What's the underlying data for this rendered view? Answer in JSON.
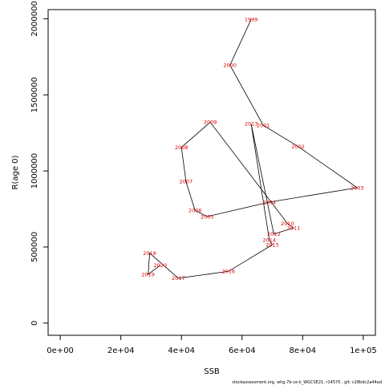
{
  "chart_data": {
    "type": "line",
    "xlabel": "SSB",
    "ylabel": "R(age 0)",
    "xlim": [
      -4000,
      104000
    ],
    "ylim": [
      -80000,
      2060000
    ],
    "x_ticks": [
      0,
      20000,
      40000,
      60000,
      80000,
      100000
    ],
    "x_tick_labels": [
      "0e+00",
      "2e+04",
      "4e+04",
      "6e+04",
      "8e+04",
      "1e+05"
    ],
    "y_ticks": [
      0,
      500000,
      1000000,
      1500000,
      2000000
    ],
    "y_tick_labels": [
      "0",
      "500000",
      "1000000",
      "1500000",
      "2000000"
    ],
    "grid": false,
    "line_color": "#000000",
    "label_color": "#e00000",
    "points": [
      {
        "year": "1999",
        "x": 63000,
        "y": 1995000
      },
      {
        "year": "2000",
        "x": 56000,
        "y": 1695000
      },
      {
        "year": "2001",
        "x": 67000,
        "y": 1300000
      },
      {
        "year": "2002",
        "x": 78500,
        "y": 1160000
      },
      {
        "year": "2003",
        "x": 98000,
        "y": 890000
      },
      {
        "year": "2004",
        "x": 69000,
        "y": 795000
      },
      {
        "year": "2005",
        "x": 48500,
        "y": 700000
      },
      {
        "year": "2006",
        "x": 44500,
        "y": 740000
      },
      {
        "year": "2007",
        "x": 41500,
        "y": 930000
      },
      {
        "year": "2008",
        "x": 40000,
        "y": 1155000
      },
      {
        "year": "2009",
        "x": 49500,
        "y": 1320000
      },
      {
        "year": "2010",
        "x": 75000,
        "y": 655000
      },
      {
        "year": "2011",
        "x": 77000,
        "y": 625000
      },
      {
        "year": "2012",
        "x": 70500,
        "y": 585000
      },
      {
        "year": "2013",
        "x": 63000,
        "y": 1310000
      },
      {
        "year": "2014",
        "x": 69000,
        "y": 545000
      },
      {
        "year": "2015",
        "x": 70000,
        "y": 515000
      },
      {
        "year": "2016",
        "x": 55500,
        "y": 340000
      },
      {
        "year": "2017",
        "x": 39000,
        "y": 295000
      },
      {
        "year": "2018",
        "x": 29500,
        "y": 460000
      },
      {
        "year": "2019",
        "x": 29000,
        "y": 320000
      },
      {
        "year": "2020",
        "x": 33000,
        "y": 380000
      }
    ],
    "footer": "stockassessment.org, whg.7b-ce-k_WGCSE21, r14570 , git: c28bdc2a44ad"
  }
}
